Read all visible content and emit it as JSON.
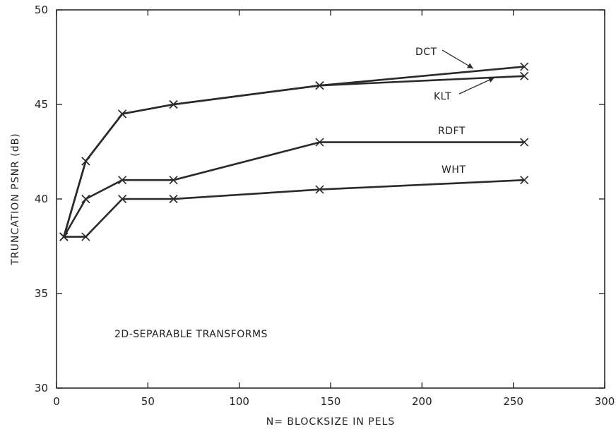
{
  "chart_data": {
    "type": "line",
    "xlabel": "N= BLOCKSIZE IN PELS",
    "ylabel": "TRUNCATION PSNR (dB)",
    "xlim": [
      0,
      300
    ],
    "ylim": [
      30,
      50
    ],
    "xticks": [
      0,
      50,
      100,
      150,
      200,
      250,
      300
    ],
    "yticks": [
      30,
      35,
      40,
      45,
      50
    ],
    "grid": false,
    "annotation": "2D-SEPARABLE TRANSFORMS",
    "series": [
      {
        "name": "DCT",
        "x": [
          4,
          16,
          36,
          64,
          144,
          256
        ],
        "y": [
          38,
          42,
          44.5,
          45,
          46,
          47
        ]
      },
      {
        "name": "KLT",
        "x": [
          4,
          16,
          36,
          64,
          144,
          256
        ],
        "y": [
          38,
          42,
          44.5,
          45,
          46,
          46.5
        ]
      },
      {
        "name": "RDFT",
        "x": [
          4,
          16,
          36,
          64,
          144,
          256
        ],
        "y": [
          38,
          40,
          41,
          41,
          43,
          43
        ]
      },
      {
        "name": "WHT",
        "x": [
          4,
          16,
          36,
          64,
          144,
          256
        ],
        "y": [
          38,
          38,
          40,
          40,
          40.5,
          41
        ]
      }
    ]
  }
}
